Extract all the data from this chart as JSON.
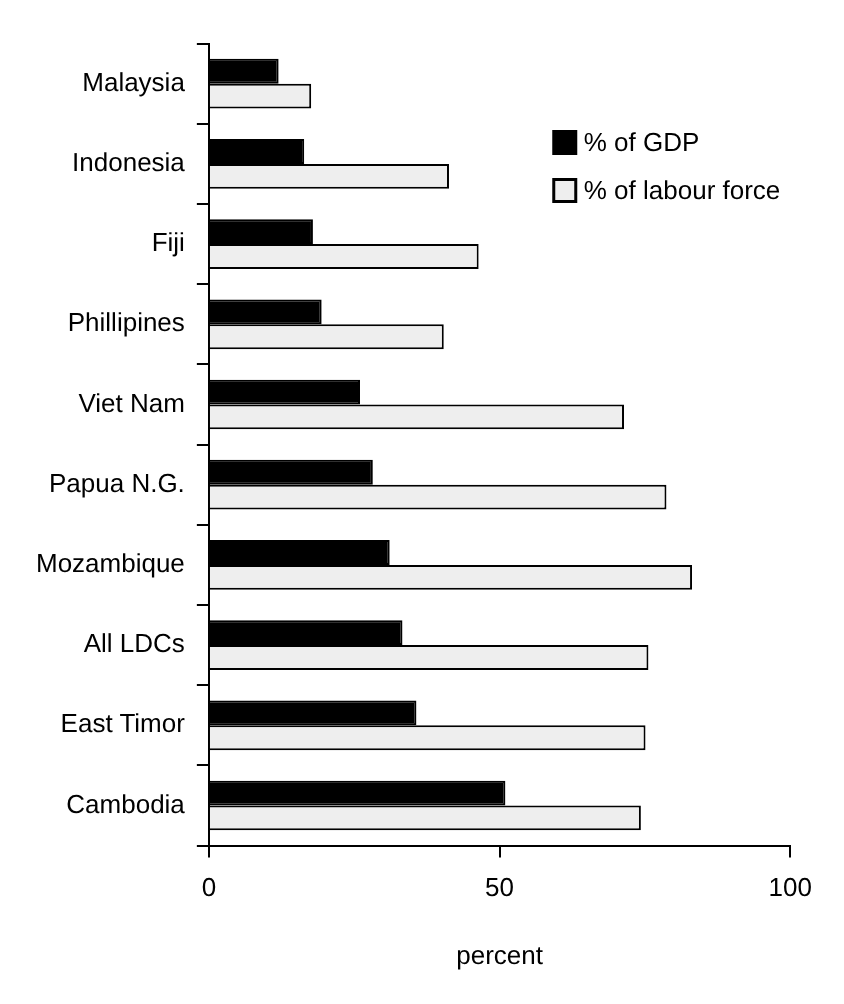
{
  "chart_data": {
    "type": "bar",
    "orientation": "horizontal",
    "xlabel": "percent",
    "categories": [
      "Malaysia",
      "Indonesia",
      "Fiji",
      "Phillipines",
      "Viet Nam",
      "Papua N.G.",
      "Mozambique",
      "All LDCs",
      "East Timor",
      "Cambodia"
    ],
    "series": [
      {
        "name": "% of GDP",
        "color": "#000000",
        "values": [
          12,
          16.4,
          17.9,
          19.4,
          26,
          28.2,
          31.1,
          33.3,
          35.7,
          51
        ]
      },
      {
        "name": "% of labour force",
        "color": "#eeeeee",
        "values": [
          17.6,
          41.3,
          46.4,
          40.4,
          71.4,
          78.7,
          83.1,
          75.6,
          75.1,
          74.3
        ]
      }
    ],
    "xlim": [
      0,
      100
    ],
    "xticks": [
      0,
      50,
      100
    ],
    "legend": "top right"
  }
}
